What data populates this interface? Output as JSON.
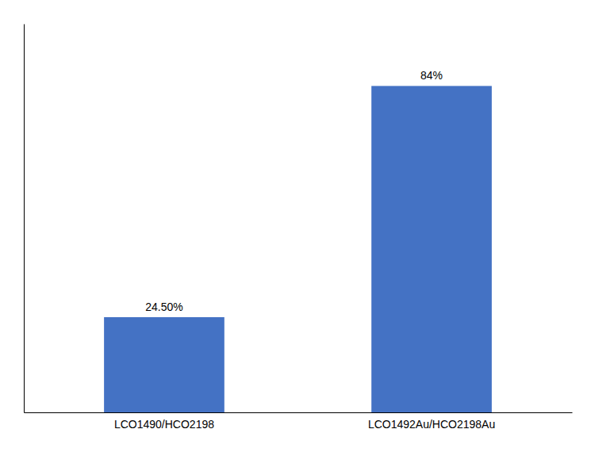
{
  "chart_data": {
    "type": "bar",
    "categories": [
      "LCO1490/HCO2198",
      "LCO1492Au/HCO2198Au"
    ],
    "values": [
      24.5,
      84.0
    ],
    "value_labels": [
      "24.50%",
      "84%"
    ],
    "data_labels": true,
    "color": "#4472C4",
    "ylim": [
      0,
      100
    ],
    "tick_labels": "x"
  }
}
